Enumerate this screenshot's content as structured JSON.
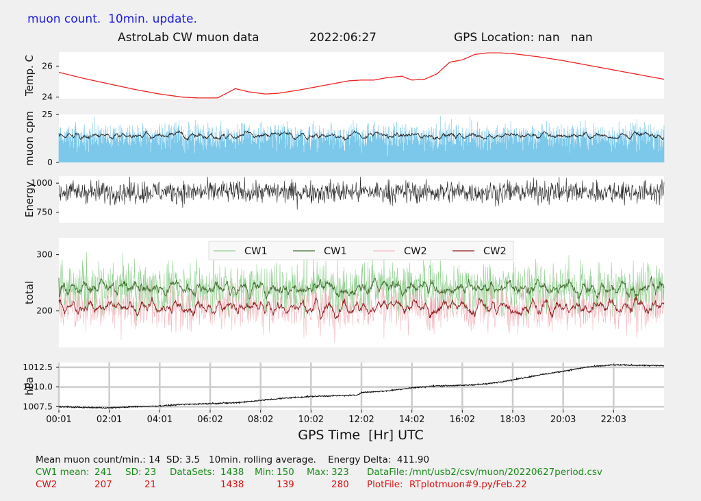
{
  "page": {
    "top_note": "muon count.  10min. update.",
    "header": {
      "title": "AstroLab CW muon data",
      "date": "2022:06:27",
      "gps_location": "GPS Location: nan   nan"
    },
    "x_axis_title": "GPS Time  [Hr] UTC",
    "stats": {
      "line1": "Mean muon count/min.: 14  SD: 3.5   10min. rolling average.    Energy Delta:  411.90",
      "cw1": {
        "label": "CW1 mean:",
        "mean": "241",
        "sd_label": "SD:",
        "sd": "23",
        "datasets_label": "DataSets:",
        "datasets": "1438",
        "min_label": "Min:",
        "min": "150",
        "max_label": "Max:",
        "max": "323",
        "file_label": "DataFile:",
        "file": "/mnt/usb2/csv/muon/20220627period.csv"
      },
      "cw2": {
        "label": "CW2",
        "mean": "207",
        "sd": "21",
        "datasets": "1438",
        "min": "139",
        "max": "280",
        "file_label": "PlotFile:",
        "file": "RTplotmuon#9.py/Feb.22"
      }
    },
    "colors": {
      "temp": "#ee2222",
      "muon_bars": "#7cc8ea",
      "muon_avg": "#222222",
      "energy": "#222222",
      "cw1_raw": "#8fd08f",
      "cw1_avg": "#3f6a2a",
      "cw2_raw": "#f4b8bf",
      "cw2_avg": "#8b1a1a",
      "pressure": "#111111"
    }
  },
  "chart_data": [
    {
      "type": "line",
      "ylabel": "Temp. C",
      "yticks": [
        24,
        26
      ],
      "ylim": [
        23.9,
        26.9
      ],
      "x": [
        0.0,
        1.0,
        2.0,
        3.0,
        4.0,
        4.9,
        5.5,
        6.3,
        7.0,
        7.5,
        8.2,
        8.7,
        9.5,
        10.5,
        11.5,
        12.0,
        12.5,
        13.0,
        13.6,
        14.0,
        14.5,
        15.0,
        15.5,
        16.0,
        16.5,
        17.0,
        17.5,
        18.0,
        19.0,
        20.0,
        21.0,
        22.0,
        23.0,
        24.0
      ],
      "series": [
        {
          "values": [
            25.6,
            25.2,
            24.85,
            24.5,
            24.2,
            24.0,
            23.95,
            23.95,
            24.55,
            24.35,
            24.2,
            24.25,
            24.45,
            24.75,
            25.05,
            25.1,
            25.1,
            25.25,
            25.35,
            25.1,
            25.15,
            25.5,
            26.25,
            26.4,
            26.75,
            26.85,
            26.85,
            26.8,
            26.6,
            26.35,
            26.05,
            25.75,
            25.45,
            25.15
          ]
        }
      ]
    },
    {
      "type": "bar",
      "ylabel": "muon cpm",
      "yticks": [
        0,
        25
      ],
      "ylim": [
        0,
        25
      ],
      "mean": 14,
      "sd": 3.5,
      "rolling_average": "10min.",
      "datasets": 1438
    },
    {
      "type": "line",
      "ylabel": "Energy",
      "yticks": [
        750,
        1000
      ],
      "ylim": [
        660,
        1060
      ],
      "energy_delta": 411.9,
      "datasets": 1438
    },
    {
      "type": "line",
      "ylabel": "total",
      "yticks": [
        200,
        300
      ],
      "ylim": [
        135,
        330
      ],
      "legend": [
        "CW1",
        "CW1",
        "CW2",
        "CW2"
      ],
      "legend_position": "top-center",
      "series": [
        {
          "name": "CW1",
          "mean": 241,
          "sd": 23,
          "min": 150,
          "max": 323,
          "datasets": 1438
        },
        {
          "name": "CW2",
          "mean": 207,
          "sd": 21,
          "min": 139,
          "max": 280,
          "datasets": 1438
        }
      ]
    },
    {
      "type": "line",
      "ylabel": "hPa",
      "yticks": [
        1007.5,
        1010.0,
        1012.5
      ],
      "ylim": [
        1007.1,
        1013.1
      ],
      "grid": true,
      "xlabel": "GPS Time  [Hr] UTC",
      "xticks": [
        "00:01",
        "02:01",
        "04:01",
        "06:02",
        "08:02",
        "10:02",
        "12:02",
        "14:02",
        "16:02",
        "18:03",
        "20:03",
        "22:03"
      ],
      "x": [
        0.0,
        1.0,
        2.0,
        3.0,
        4.0,
        5.0,
        6.0,
        7.0,
        8.0,
        9.0,
        10.0,
        11.0,
        11.8,
        12.0,
        13.0,
        14.0,
        15.0,
        16.0,
        17.0,
        18.0,
        19.0,
        20.0,
        21.0,
        22.0,
        23.0,
        24.0
      ],
      "series": [
        {
          "values": [
            1007.5,
            1007.4,
            1007.35,
            1007.5,
            1007.6,
            1007.8,
            1007.9,
            1008.0,
            1008.3,
            1008.6,
            1008.8,
            1008.9,
            1008.95,
            1009.3,
            1009.5,
            1009.9,
            1010.15,
            1010.2,
            1010.4,
            1010.9,
            1011.5,
            1012.0,
            1012.55,
            1012.8,
            1012.75,
            1012.7
          ]
        }
      ]
    }
  ]
}
